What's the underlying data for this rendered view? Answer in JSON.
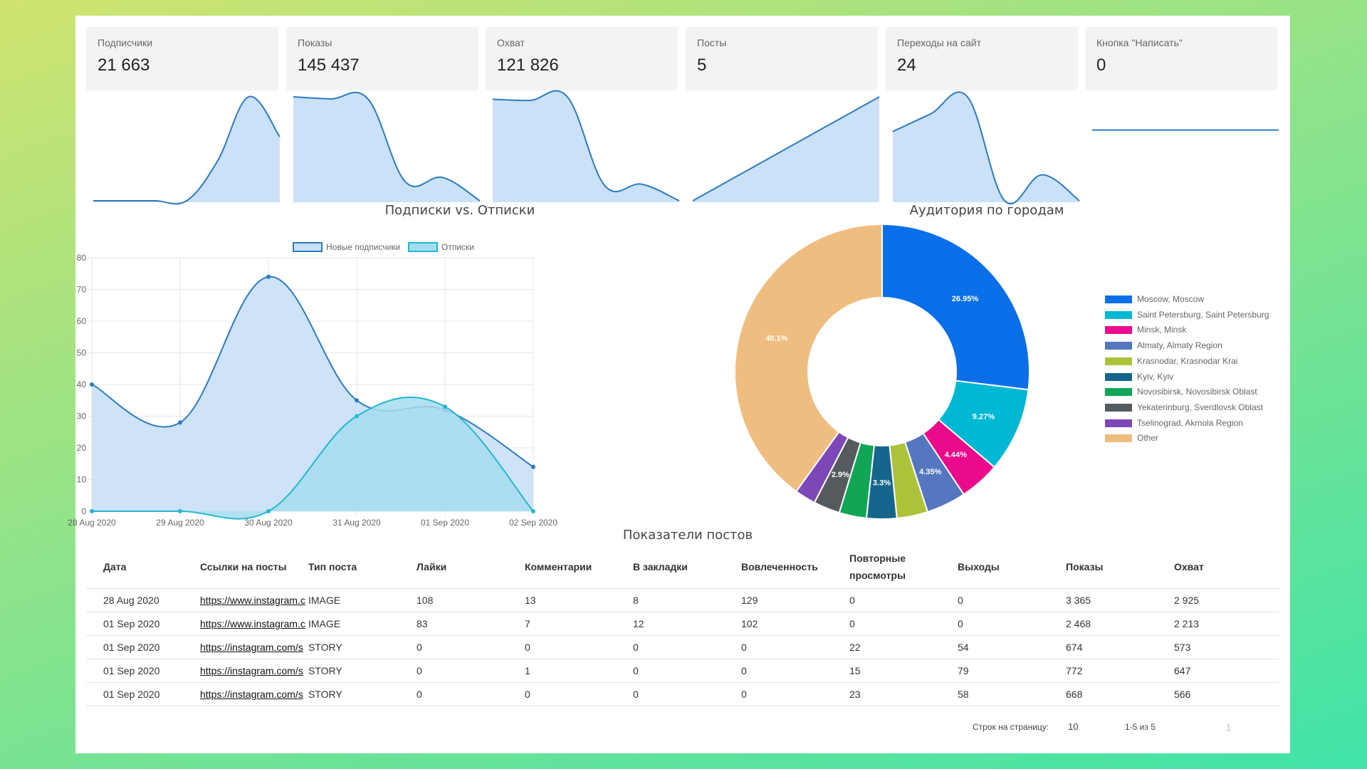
{
  "kpis": [
    {
      "label": "Подписчики",
      "value": "21 663"
    },
    {
      "label": "Показы",
      "value": "145 437"
    },
    {
      "label": "Охват",
      "value": "121 826"
    },
    {
      "label": "Посты",
      "value": "5"
    },
    {
      "label": "Переходы на сайт",
      "value": "24"
    },
    {
      "label": "Кнопка \"Написать\"",
      "value": "0"
    }
  ],
  "line_chart": {
    "title": "Подписки vs. Отписки"
  },
  "donut_chart": {
    "title": "Аудитория по городам"
  },
  "table": {
    "title": "Показатели постов",
    "headers": [
      "Дата",
      "Ссылки на посты",
      "Тип поста",
      "Лайки",
      "Комментарии",
      "В закладки",
      "Вовлеченность",
      "Повторные просмотры",
      "Выходы",
      "Показы",
      "Охват"
    ],
    "rows": [
      [
        "28 Aug 2020",
        "https://www.instagram.c",
        "IMAGE",
        "108",
        "13",
        "8",
        "129",
        "0",
        "0",
        "3 365",
        "2 925"
      ],
      [
        "01 Sep 2020",
        "https://www.instagram.c",
        "IMAGE",
        "83",
        "7",
        "12",
        "102",
        "0",
        "0",
        "2 468",
        "2 213"
      ],
      [
        "01 Sep 2020",
        "https://instagram.com/s",
        "STORY",
        "0",
        "0",
        "0",
        "0",
        "22",
        "54",
        "674",
        "573"
      ],
      [
        "01 Sep 2020",
        "https://instagram.com/s",
        "STORY",
        "0",
        "1",
        "0",
        "0",
        "15",
        "79",
        "772",
        "647"
      ],
      [
        "01 Sep 2020",
        "https://instagram.com/s",
        "STORY",
        "0",
        "0",
        "0",
        "0",
        "23",
        "58",
        "668",
        "566"
      ]
    ]
  },
  "pagination": {
    "rows_label": "Строк на страницу:",
    "rows_value": "10",
    "range": "1-5 из 5",
    "page": "1"
  },
  "colors": {
    "blue_line": "#2b7bc0",
    "blue_fill": "#cbe1f7",
    "teal_line": "#22b8cf",
    "teal_fill": "#a6dcef"
  },
  "chart_data": [
    {
      "type": "area",
      "title": "Подписки vs. Отписки",
      "x": [
        "28 Aug 2020",
        "29 Aug 2020",
        "30 Aug 2020",
        "31 Aug 2020",
        "01 Sep 2020",
        "02 Sep 2020"
      ],
      "series": [
        {
          "name": "Новые подписчики",
          "values": [
            40,
            28,
            74,
            35,
            32,
            14
          ],
          "color": "#2b7bc0"
        },
        {
          "name": "Отписки",
          "values": [
            0,
            0,
            0,
            30,
            33,
            0
          ],
          "color": "#22b8cf"
        }
      ],
      "ylim": [
        0,
        80
      ],
      "yticks": [
        0,
        10,
        20,
        30,
        40,
        50,
        60,
        70,
        80
      ],
      "grid": true,
      "legend": "top"
    },
    {
      "type": "pie",
      "title": "Аудитория по городам",
      "donut": true,
      "labels": [
        "Moscow, Moscow",
        "Saint Petersburg, Saint Petersburg",
        "Minsk, Minsk",
        "Almaty, Almaty Region",
        "Krasnodar, Krasnodar Krai",
        "Kyiv, Kyiv",
        "Novosibirsk, Novosibirsk Oblast",
        "Yekaterinburg, Sverdlovsk Oblast",
        "Tselinograd, Akmola Region",
        "Other"
      ],
      "values": [
        26.95,
        9.27,
        4.44,
        4.35,
        3.4,
        3.3,
        3.0,
        2.9,
        2.3,
        40.1
      ],
      "value_labels": [
        "26.95%",
        "9.27%",
        "4.44%",
        "4.35%",
        "",
        "3.3%",
        "",
        "2.9%",
        "",
        "40.1%"
      ],
      "colors": [
        "#0a6fe8",
        "#00b8d4",
        "#ec0a8c",
        "#5577c0",
        "#adc23a",
        "#15658c",
        "#10a655",
        "#555a5e",
        "#7e47b8",
        "#efbd7f"
      ],
      "legend": "right"
    },
    {
      "type": "area",
      "title": "",
      "values": [
        21650,
        21650,
        21650,
        21650,
        21655,
        21663,
        21658
      ],
      "color": "#2b7bc0"
    },
    {
      "type": "area",
      "title": "",
      "values": [
        100,
        98,
        98,
        20,
        24,
        2
      ],
      "color": "#2b7bc0"
    },
    {
      "type": "area",
      "title": "",
      "values": [
        88,
        87,
        90,
        15,
        16,
        2
      ],
      "color": "#2b7bc0"
    },
    {
      "type": "area",
      "title": "",
      "values": [
        0,
        1,
        2,
        3,
        4,
        5
      ],
      "color": "#2b7bc0"
    },
    {
      "type": "area",
      "title": "",
      "values": [
        8,
        10,
        12,
        0,
        3,
        0
      ],
      "color": "#2b7bc0"
    },
    {
      "type": "line",
      "title": "",
      "values": [
        0,
        0,
        0,
        0,
        0,
        0
      ],
      "color": "#2b7bc0"
    }
  ]
}
